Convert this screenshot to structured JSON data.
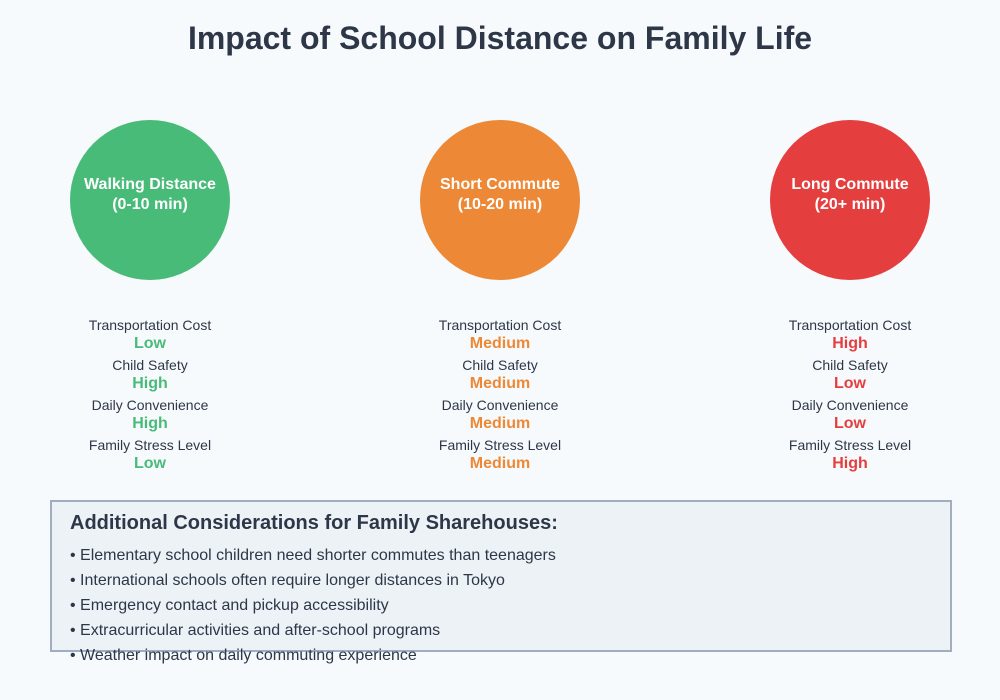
{
  "title": "Impact of School Distance on Family Life",
  "colors": {
    "walking": "#48bb78",
    "short": "#ed8936",
    "long": "#e53e3e",
    "text": "#2d3748",
    "background": "#f7fafc",
    "box_background": "#edf2f7",
    "box_border": "#a0aec0"
  },
  "categories": [
    {
      "name_line1": "Walking Distance",
      "name_line2": "(0-10 min)",
      "color": "#48bb78",
      "metrics": [
        {
          "label": "Transportation Cost",
          "value": "Low"
        },
        {
          "label": "Child Safety",
          "value": "High"
        },
        {
          "label": "Daily Convenience",
          "value": "High"
        },
        {
          "label": "Family Stress Level",
          "value": "Low"
        }
      ]
    },
    {
      "name_line1": "Short Commute",
      "name_line2": "(10-20 min)",
      "color": "#ed8936",
      "metrics": [
        {
          "label": "Transportation Cost",
          "value": "Medium"
        },
        {
          "label": "Child Safety",
          "value": "Medium"
        },
        {
          "label": "Daily Convenience",
          "value": "Medium"
        },
        {
          "label": "Family Stress Level",
          "value": "Medium"
        }
      ]
    },
    {
      "name_line1": "Long Commute",
      "name_line2": "(20+ min)",
      "color": "#e53e3e",
      "metrics": [
        {
          "label": "Transportation Cost",
          "value": "High"
        },
        {
          "label": "Child Safety",
          "value": "Low"
        },
        {
          "label": "Daily Convenience",
          "value": "Low"
        },
        {
          "label": "Family Stress Level",
          "value": "High"
        }
      ]
    }
  ],
  "considerations": {
    "title": "Additional Considerations for Family Sharehouses:",
    "items": [
      "• Elementary school children need shorter commutes than teenagers",
      "• International schools often require longer distances in Tokyo",
      "• Emergency contact and pickup accessibility",
      "• Extracurricular activities and after-school programs",
      "• Weather impact on daily commuting experience"
    ]
  }
}
